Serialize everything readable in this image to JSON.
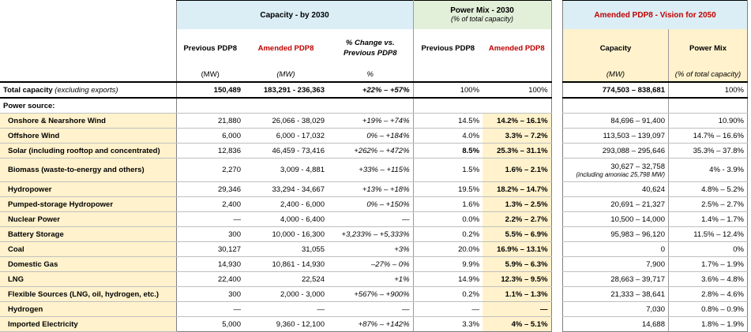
{
  "headers": {
    "capacity_group": "Capacity - by 2030",
    "powermix_group": "Power Mix - 2030",
    "powermix_group_sub": "(% of total capacity)",
    "vision_group": "Amended PDP8 - Vision for 2050",
    "prev_pdp8": "Previous PDP8",
    "amended_pdp8": "Amended PDP8",
    "change_line1": "% Change vs.",
    "change_line2": "Previous PDP8",
    "pm_prev": "Previous PDP8",
    "pm_amended": "Amended PDP8",
    "v_capacity": "Capacity",
    "v_powermix": "Power Mix",
    "unit_mw": "(MW)",
    "unit_mw_it": "(MW)",
    "unit_pct": "%",
    "unit_v_mw": "(MW)",
    "unit_v_pct": "(% of total capacity)"
  },
  "total": {
    "label": "Total capacity",
    "label_note": "(excluding exports)",
    "prev": "150,489",
    "amended": "183,291 - 236,363",
    "change": "+22% – +57%",
    "pm_prev": "100%",
    "pm_amended": "100%",
    "v_capacity": "774,503 – 838,681",
    "v_mix": "100%"
  },
  "power_source_label": "Power source:",
  "rows": [
    {
      "label": "Onshore & Nearshore Wind",
      "prev": "21,880",
      "amended": "26,066 - 38,029",
      "change": "+19% – +74%",
      "pm_prev": "14.5%",
      "pm_amended": "14.2% – 16.1%",
      "v_capacity": "84,696 – 91,400",
      "v_mix": "10.90%"
    },
    {
      "label": "Offshore Wind",
      "prev": "6,000",
      "amended": "6,000 - 17,032",
      "change": "0% – +184%",
      "pm_prev": "4.0%",
      "pm_amended": "3.3% – 7.2%",
      "v_capacity": "113,503 – 139,097",
      "v_mix": "14.7% – 16.6%"
    },
    {
      "label": "Solar (including rooftop and concentrated)",
      "prev": "12,836",
      "amended": "46,459 - 73,416",
      "change": "+262% – +472%",
      "pm_prev": "8.5%",
      "pm_amended": "25.3% – 31.1%",
      "v_capacity": "293,088 – 295,646",
      "v_mix": "35.3% – 37.8%",
      "pm_prev_bold": true
    },
    {
      "label": "Biomass (waste-to-energy and others)",
      "prev": "2,270",
      "amended": "3,009 - 4,881",
      "change": "+33% – +115%",
      "pm_prev": "1.5%",
      "pm_amended": "1.6% – 2.1%",
      "v_capacity": "30,627 – 32,758",
      "v_note": "(including amoniac 25,798 MW)",
      "v_mix": "4% - 3.9%"
    },
    {
      "label": "Hydropower",
      "prev": "29,346",
      "amended": "33,294 - 34,667",
      "change": "+13% – +18%",
      "pm_prev": "19.5%",
      "pm_amended": "18.2% – 14.7%",
      "v_capacity": "40,624",
      "v_mix": "4.8% – 5.2%"
    },
    {
      "label": "Pumped-storage Hydropower",
      "prev": "2,400",
      "amended": "2,400 - 6,000",
      "change": "0% – +150%",
      "pm_prev": "1.6%",
      "pm_amended": "1.3% – 2.5%",
      "v_capacity": "20,691 – 21,327",
      "v_mix": "2.5% – 2.7%"
    },
    {
      "label": "Nuclear Power",
      "prev": "—",
      "amended": "4,000 - 6,400",
      "change": "—",
      "pm_prev": "0.0%",
      "pm_amended": "2.2% – 2.7%",
      "v_capacity": "10,500 – 14,000",
      "v_mix": "1.4% – 1.7%"
    },
    {
      "label": "Battery Storage",
      "prev": "300",
      "amended": "10,000 - 16,300",
      "change": "+3,233% – +5,333%",
      "pm_prev": "0.2%",
      "pm_amended": "5.5% – 6.9%",
      "v_capacity": "95,983 – 96,120",
      "v_mix": "11.5% – 12.4%"
    },
    {
      "label": "Coal",
      "prev": "30,127",
      "amended": "31,055",
      "change": "+3%",
      "pm_prev": "20.0%",
      "pm_amended": "16.9% – 13.1%",
      "v_capacity": "0",
      "v_mix": "0%"
    },
    {
      "label": "Domestic Gas",
      "prev": "14,930",
      "amended": "10,861 - 14,930",
      "change": "–27% – 0%",
      "pm_prev": "9.9%",
      "pm_amended": "5.9% – 6.3%",
      "v_capacity": "7,900",
      "v_mix": "1.7% – 1.9%"
    },
    {
      "label": "LNG",
      "prev": "22,400",
      "amended": "22,524",
      "change": "+1%",
      "pm_prev": "14.9%",
      "pm_amended": "12.3% – 9.5%",
      "v_capacity": "28,663 – 39,717",
      "v_mix": "3.6% – 4.8%"
    },
    {
      "label": "Flexible Sources (LNG, oil, hydrogen, etc.)",
      "prev": "300",
      "amended": "2,000 - 3,000",
      "change": "+567% – +900%",
      "pm_prev": "0.2%",
      "pm_amended": "1.1% – 1.3%",
      "v_capacity": "21,333 – 38,641",
      "v_mix": "2.8% – 4.6%"
    },
    {
      "label": "Hydrogen",
      "prev": "—",
      "amended": "—",
      "change": "—",
      "pm_prev": "—",
      "pm_amended": "—",
      "v_capacity": "7,030",
      "v_mix": "0.8% – 0.9%"
    },
    {
      "label": "Imported Electricity",
      "prev": "5,000",
      "amended": "9,360 - 12,100",
      "change": "+87% – +142%",
      "pm_prev": "3.3%",
      "pm_amended": "4% – 5.1%",
      "v_capacity": "14,688",
      "v_mix": "1.8% – 1.9%"
    }
  ],
  "colors": {
    "blue": "#dbeef6",
    "green": "#e2efd9",
    "yellow": "#fff2cc",
    "red": "#c00000"
  }
}
